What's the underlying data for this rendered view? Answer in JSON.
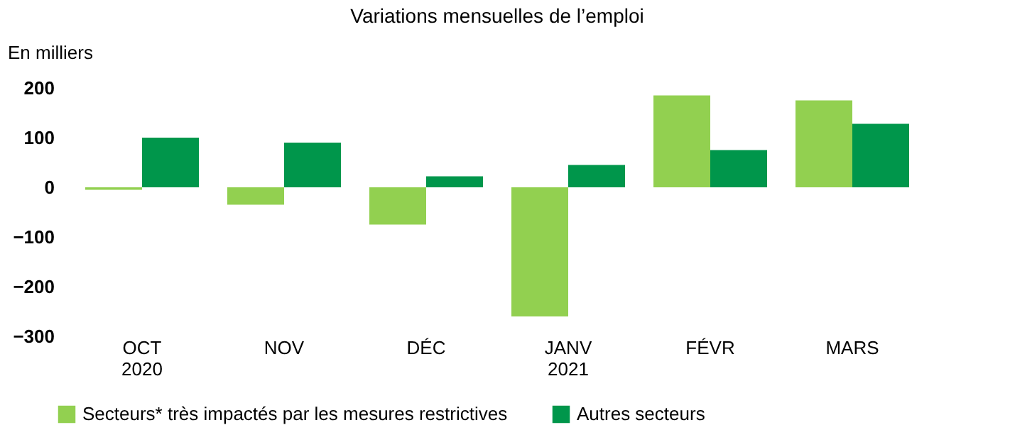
{
  "chart_data": {
    "type": "bar",
    "title": "Variations mensuelles de l’emploi",
    "ylabel": "En milliers",
    "categories": [
      "OCT\n2020",
      "NOV",
      "DÉC",
      "JANV\n2021",
      "FÉVR",
      "MARS"
    ],
    "series": [
      {
        "name": "Secteurs* très impactés par les mesures restrictives",
        "color": "#92d050",
        "values": [
          -5,
          -35,
          -75,
          -260,
          185,
          175
        ]
      },
      {
        "name": "Autres secteurs",
        "color": "#00964b",
        "values": [
          100,
          90,
          22,
          45,
          75,
          128
        ]
      }
    ],
    "ylim": [
      -300,
      200
    ],
    "yticks": [
      -300,
      -200,
      -100,
      0,
      100,
      200
    ],
    "grid": false,
    "legend": "bottom"
  }
}
